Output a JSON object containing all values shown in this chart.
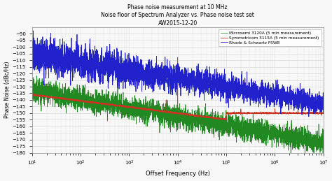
{
  "title_line1": "Phase noise measurement at 10 MHz",
  "title_line2": "Noise floor of Spectrum Analyzer vs. Phase noise test set",
  "title_line3": "AW2015-12-20",
  "xlabel": "Offset Frequency (Hz)",
  "ylabel": "Phase Noise (dBc/Hz)",
  "xlim_log": [
    1,
    7
  ],
  "ylim": [
    -180,
    -85
  ],
  "yticks": [
    -180,
    -175,
    -170,
    -165,
    -160,
    -155,
    -150,
    -145,
    -140,
    -135,
    -130,
    -125,
    -120,
    -115,
    -110,
    -105,
    -100,
    -95,
    -90
  ],
  "legend_labels": [
    "Rhode & Schwartz FSW8",
    "Microsemi 3120A (5 min measurement)",
    "Symmetricom 5115A (5 min measurement)"
  ],
  "colors": {
    "blue": "#2222cc",
    "green": "#228822",
    "red": "#cc3322"
  },
  "background": "#f8f8f8",
  "grid_color": "#dddddd"
}
